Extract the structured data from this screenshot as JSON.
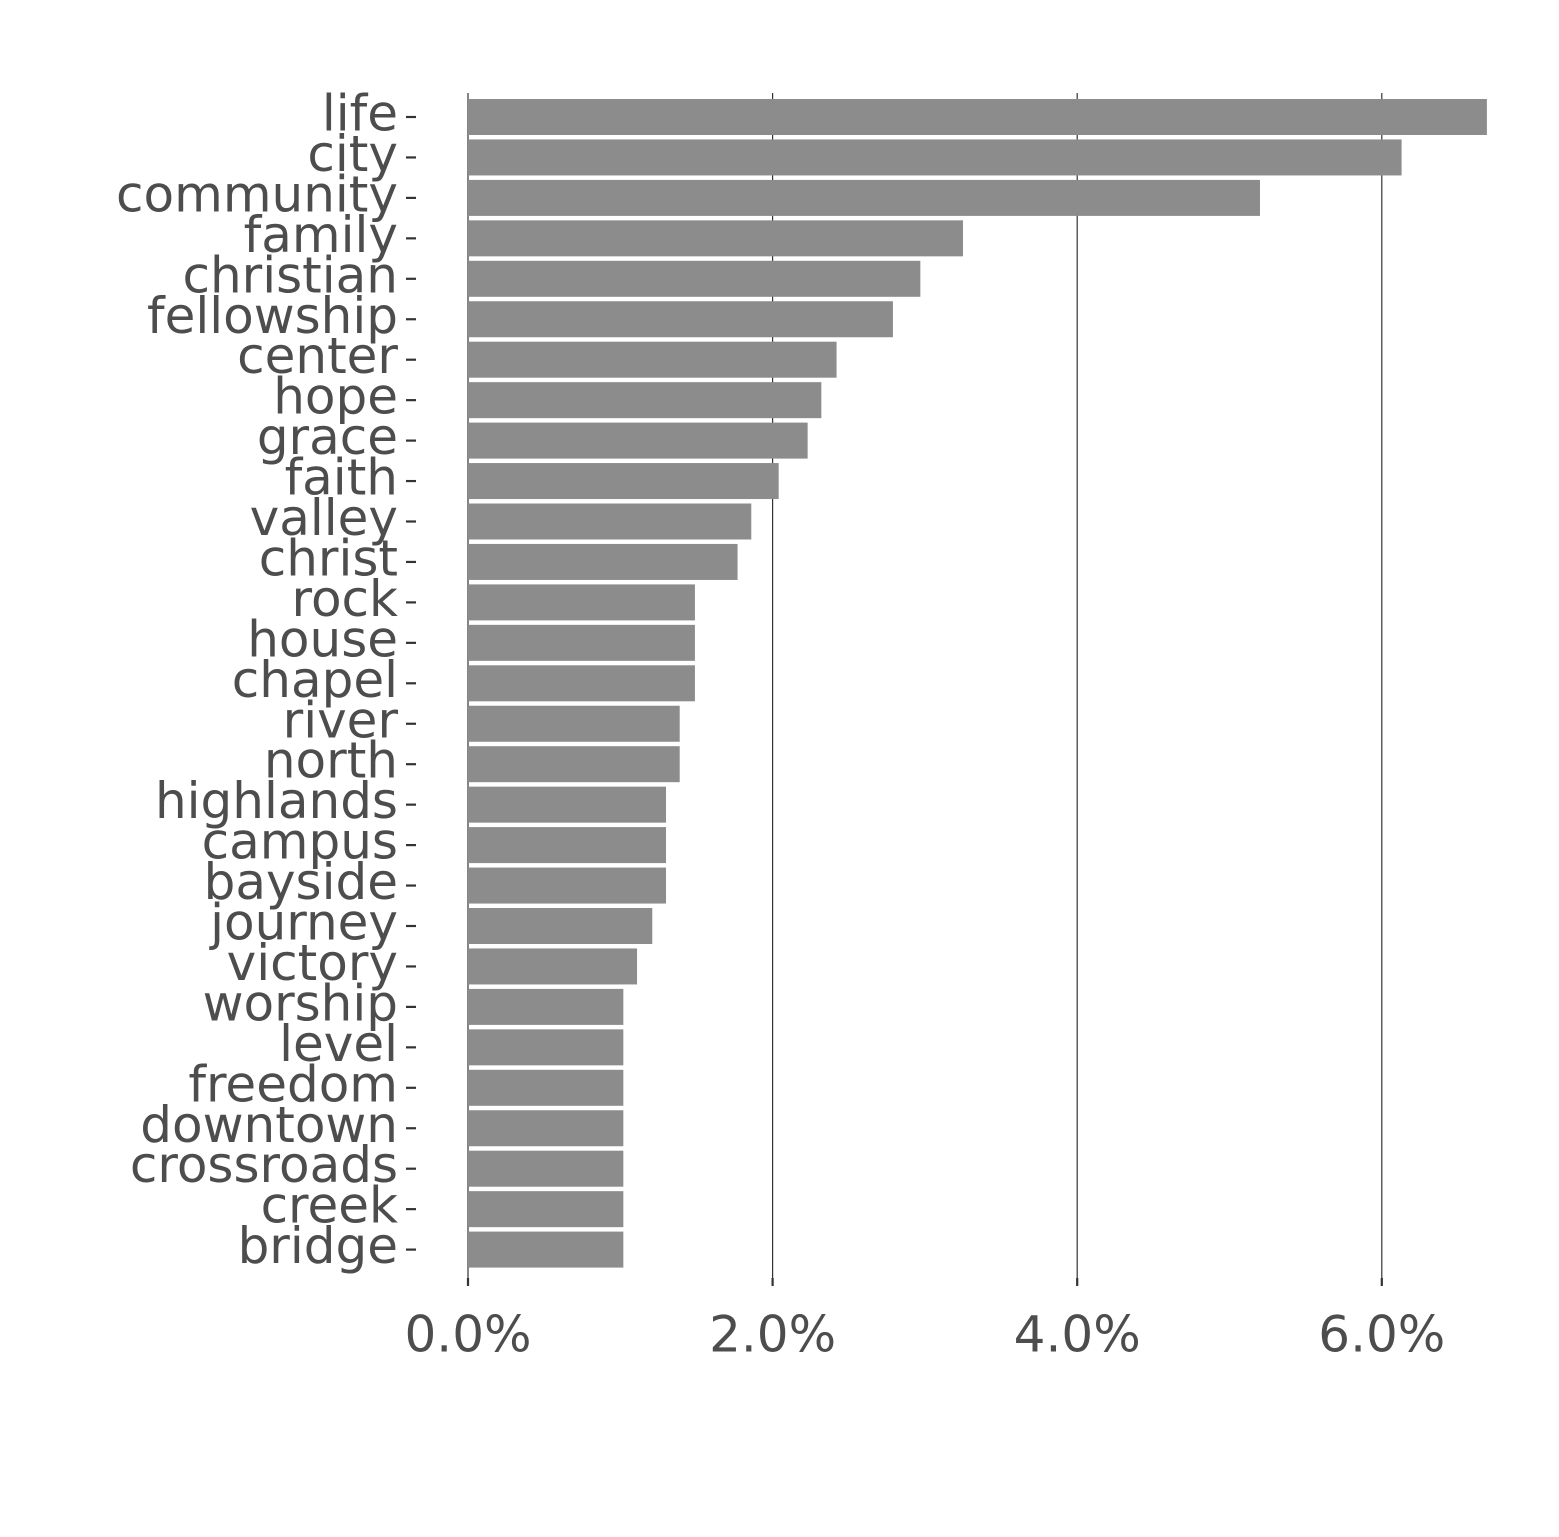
{
  "chart_data": {
    "type": "bar",
    "orientation": "horizontal",
    "categories": [
      "life",
      "city",
      "community",
      "family",
      "christian",
      "fellowship",
      "center",
      "hope",
      "grace",
      "faith",
      "valley",
      "christ",
      "rock",
      "house",
      "chapel",
      "river",
      "north",
      "highlands",
      "campus",
      "bayside",
      "journey",
      "victory",
      "worship",
      "level",
      "freedom",
      "downtown",
      "crossroads",
      "creek",
      "bridge"
    ],
    "values": [
      6.69,
      6.13,
      5.2,
      3.25,
      2.97,
      2.79,
      2.42,
      2.32,
      2.23,
      2.04,
      1.86,
      1.77,
      1.49,
      1.49,
      1.49,
      1.39,
      1.39,
      1.3,
      1.3,
      1.3,
      1.21,
      1.11,
      1.02,
      1.02,
      1.02,
      1.02,
      1.02,
      1.02,
      1.02
    ],
    "value_unit": "%",
    "x_ticks": [
      "0.0%",
      "2.0%",
      "4.0%",
      "6.0%"
    ],
    "x_tick_values": [
      0,
      2,
      4,
      6
    ],
    "xlim": [
      0,
      6.8
    ],
    "title": "",
    "xlabel": "",
    "ylabel": "",
    "grid": "vertical",
    "legend": "none",
    "colors": {
      "bar": "#8c8c8c",
      "text": "#4d4d4d",
      "grid": "#333333",
      "background": "#ffffff"
    }
  }
}
